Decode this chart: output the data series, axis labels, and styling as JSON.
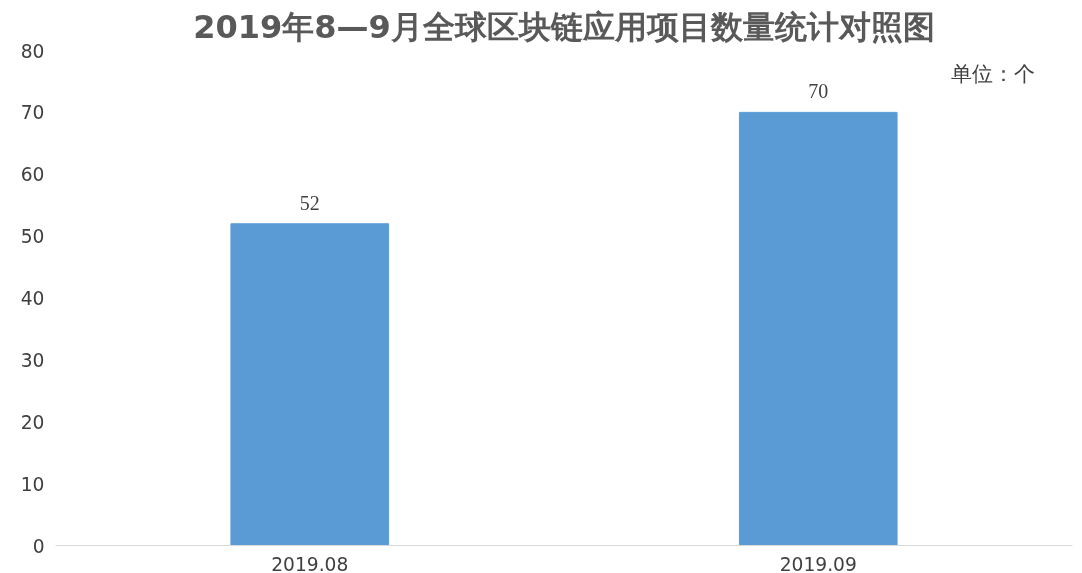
{
  "chart_data": {
    "type": "bar",
    "title": "2019年8—9月全球区块链应用项目数量统计对照图",
    "categories": [
      "2019.08",
      "2019.09"
    ],
    "series": [
      {
        "color": "#5b9bd5",
        "values": [
          52,
          70
        ]
      }
    ],
    "ylim": [
      0,
      80
    ],
    "yticks": [
      0,
      10,
      20,
      30,
      40,
      50,
      60,
      70,
      80
    ],
    "grid": false,
    "data_labels": true,
    "annotations": [
      "单位：个"
    ]
  }
}
